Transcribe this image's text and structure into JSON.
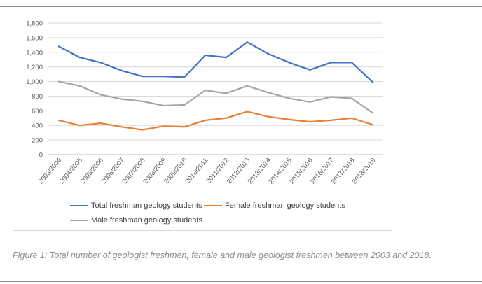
{
  "chart_data": {
    "type": "line",
    "categories": [
      "2003/2004",
      "2004/2005",
      "2005/2006",
      "2006/2007",
      "2007/2008",
      "2008/2009",
      "2009/2010",
      "2010/2011",
      "2011/2012",
      "2012/2013",
      "2013/2014",
      "2014/2015",
      "2015/2016",
      "2016/2017",
      "2017/2018",
      "2018/2019"
    ],
    "series": [
      {
        "name": "Total freshman geology students",
        "color": "#4472c4",
        "values": [
          1480,
          1330,
          1260,
          1150,
          1070,
          1070,
          1060,
          1360,
          1330,
          1540,
          1380,
          1260,
          1160,
          1260,
          1260,
          990
        ]
      },
      {
        "name": "Female freshman geology students",
        "color": "#ed7d31",
        "values": [
          470,
          400,
          430,
          380,
          340,
          390,
          380,
          470,
          500,
          590,
          520,
          480,
          450,
          470,
          500,
          410
        ]
      },
      {
        "name": "Male freshman geology students",
        "color": "#a5a5a5",
        "values": [
          1000,
          940,
          820,
          760,
          730,
          670,
          680,
          880,
          840,
          940,
          850,
          770,
          720,
          790,
          770,
          570
        ]
      }
    ],
    "ylim": [
      0,
      1800
    ],
    "yticks": [
      "0",
      "200",
      "400",
      "600",
      "800",
      "1,000",
      "1,200",
      "1,400",
      "1,600",
      "1,800"
    ],
    "grid": true,
    "legend_position": "bottom"
  },
  "caption": "Figure 1: Total number of geologist freshmen, female and male geologist freshmen between 2003 and 2018."
}
